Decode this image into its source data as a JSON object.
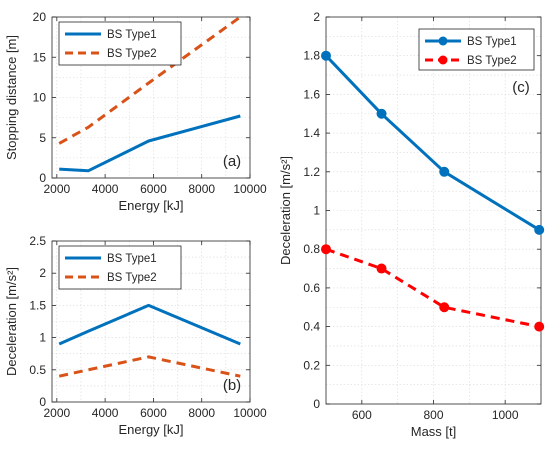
{
  "chart_data": [
    {
      "id": "a",
      "type": "line",
      "panel_label": "(a)",
      "xlabel": "Energy [kJ]",
      "ylabel": "Stopping distance [m]",
      "xlim": [
        1800,
        10000
      ],
      "ylim": [
        0,
        20
      ],
      "xticks": [
        2000,
        4000,
        6000,
        8000,
        10000
      ],
      "yticks": [
        0,
        5,
        10,
        15,
        20
      ],
      "grid": true,
      "legend_position": "top-left",
      "series": [
        {
          "name": "BS Type1",
          "color": "#0072BD",
          "style": "solid",
          "markers": false,
          "x": [
            2100,
            3300,
            5800,
            9600
          ],
          "y": [
            1.1,
            0.9,
            4.6,
            7.7
          ]
        },
        {
          "name": "BS Type2",
          "color": "#D95319",
          "style": "dashed",
          "markers": false,
          "x": [
            2100,
            3300,
            5800,
            9600
          ],
          "y": [
            4.3,
            6.3,
            11.8,
            20.0
          ]
        }
      ]
    },
    {
      "id": "b",
      "type": "line",
      "panel_label": "(b)",
      "xlabel": "Energy [kJ]",
      "ylabel": "Deceleration [m/s²]",
      "xlim": [
        1800,
        10000
      ],
      "ylim": [
        0,
        2.5
      ],
      "xticks": [
        2000,
        4000,
        6000,
        8000,
        10000
      ],
      "yticks": [
        0,
        0.5,
        1,
        1.5,
        2,
        2.5
      ],
      "grid": true,
      "legend_position": "top-left",
      "series": [
        {
          "name": "BS Type1",
          "color": "#0072BD",
          "style": "solid",
          "markers": false,
          "x": [
            2100,
            3300,
            5800,
            9600
          ],
          "y": [
            0.9,
            1.1,
            1.5,
            0.9
          ]
        },
        {
          "name": "BS Type2",
          "color": "#D95319",
          "style": "dashed",
          "markers": false,
          "x": [
            2100,
            3300,
            5800,
            9600
          ],
          "y": [
            0.4,
            0.5,
            0.7,
            0.4
          ]
        }
      ]
    },
    {
      "id": "c",
      "type": "line",
      "panel_label": "(c)",
      "xlabel": "Mass [t]",
      "ylabel": "Deceleration [m/s²]",
      "xlim": [
        500,
        1100
      ],
      "ylim": [
        0,
        2
      ],
      "xticks": [
        600,
        800,
        1000
      ],
      "yticks": [
        0,
        0.2,
        0.4,
        0.6,
        0.8,
        1,
        1.2,
        1.4,
        1.6,
        1.8,
        2
      ],
      "grid": true,
      "legend_position": "top-right",
      "series": [
        {
          "name": "BS Type1",
          "color": "#0072BD",
          "style": "solid",
          "markers": true,
          "x": [
            500,
            655,
            830,
            1095
          ],
          "y": [
            1.8,
            1.5,
            1.2,
            0.9
          ]
        },
        {
          "name": "BS Type2",
          "color": "#FF0000",
          "style": "dashed",
          "markers": true,
          "x": [
            500,
            655,
            830,
            1095
          ],
          "y": [
            0.8,
            0.7,
            0.5,
            0.4
          ]
        }
      ]
    }
  ]
}
